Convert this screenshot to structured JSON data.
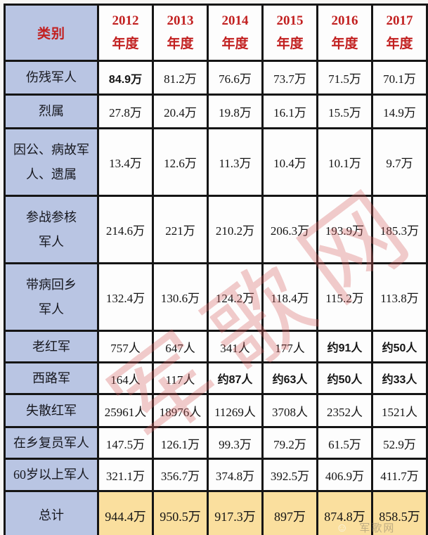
{
  "colors": {
    "category_bg": "#b9c5e3",
    "total_row_bg": "#fadf9e",
    "header_text": "#c22020",
    "border": "#151515",
    "cell_bg": "#fdfdfd",
    "watermark": "#d66060"
  },
  "watermark": {
    "diagonal_text": "军歌网",
    "corner_text": "军歌网"
  },
  "table": {
    "header": {
      "category_label": "类别",
      "year_columns": [
        {
          "year": "2012",
          "suffix": "年度"
        },
        {
          "year": "2013",
          "suffix": "年度"
        },
        {
          "year": "2014",
          "suffix": "年度"
        },
        {
          "year": "2015",
          "suffix": "年度"
        },
        {
          "year": "2016",
          "suffix": "年度"
        },
        {
          "year": "2017",
          "suffix": "年度"
        }
      ]
    },
    "rows": [
      {
        "label": "伤残军人",
        "values": [
          "84.9万",
          "81.2万",
          "76.6万",
          "73.7万",
          "71.5万",
          "70.1万"
        ],
        "bold": [
          0
        ],
        "total": false
      },
      {
        "label": "烈属",
        "values": [
          "27.8万",
          "20.4万",
          "19.8万",
          "16.1万",
          "15.5万",
          "14.9万"
        ],
        "bold": [],
        "total": false
      },
      {
        "label": "因公、病故军\n人、遗属",
        "values": [
          "13.4万",
          "12.6万",
          "11.3万",
          "10.4万",
          "10.1万",
          "9.7万"
        ],
        "bold": [],
        "total": false
      },
      {
        "label": "参战参核\n军人",
        "values": [
          "214.6万",
          "221万",
          "210.2万",
          "206.3万",
          "193.9万",
          "185.3万"
        ],
        "bold": [],
        "total": false
      },
      {
        "label": "带病回乡\n军人",
        "values": [
          "132.4万",
          "130.6万",
          "124.2万",
          "118.4万",
          "115.2万",
          "113.8万"
        ],
        "bold": [],
        "total": false
      },
      {
        "label": "老红军",
        "values": [
          "757人",
          "647人",
          "341人",
          "177人",
          "约91人",
          "约50人"
        ],
        "bold": [
          4,
          5
        ],
        "total": false
      },
      {
        "label": "西路军",
        "values": [
          "164人",
          "117人",
          "约87人",
          "约63人",
          "约50人",
          "约33人"
        ],
        "bold": [
          2,
          3,
          4,
          5
        ],
        "total": false
      },
      {
        "label": "失散红军",
        "values": [
          "25961人",
          "18976人",
          "11269人",
          "3708人",
          "2352人",
          "1521人"
        ],
        "bold": [],
        "total": false
      },
      {
        "label": "在乡复员军人",
        "values": [
          "147.5万",
          "126.1万",
          "99.3万",
          "79.2万",
          "61.5万",
          "52.9万"
        ],
        "bold": [],
        "total": false
      },
      {
        "label": "60岁以上军人",
        "values": [
          "321.1万",
          "356.7万",
          "374.8万",
          "392.5万",
          "406.9万",
          "411.7万"
        ],
        "bold": [],
        "total": false
      },
      {
        "label": "总计",
        "values": [
          "944.4万",
          "950.5万",
          "917.3万",
          "897万",
          "874.8万",
          "858.5万"
        ],
        "bold": [],
        "total": true
      }
    ]
  }
}
